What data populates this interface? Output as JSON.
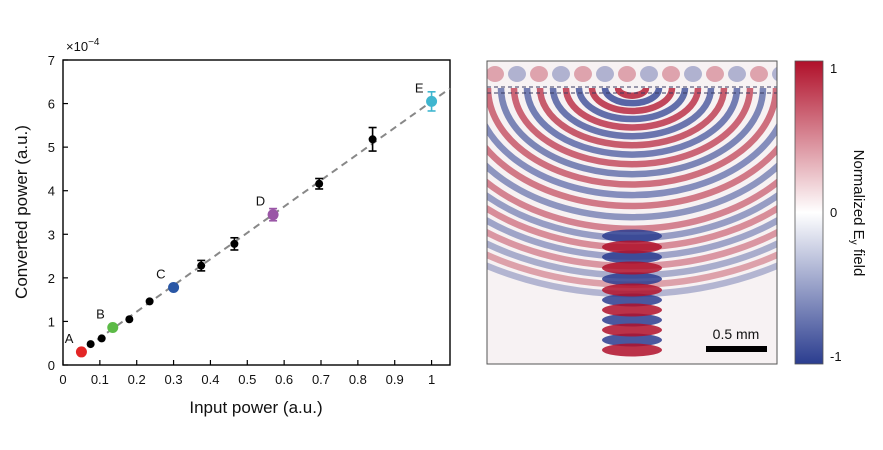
{
  "chart_data": [
    {
      "type": "scatter",
      "xlabel": "Input power (a.u.)",
      "ylabel": "Converted power (a.u.)",
      "y_multiplier": "×10",
      "y_multiplier_exp": "−4",
      "xlim": [
        0,
        1.05
      ],
      "ylim": [
        0,
        7
      ],
      "xticks": [
        0,
        0.1,
        0.2,
        0.3,
        0.4,
        0.5,
        0.6,
        0.7,
        0.8,
        0.9,
        1
      ],
      "xtick_labels": [
        "0",
        "0.1",
        "0.2",
        "0.3",
        "0.4",
        "0.5",
        "0.6",
        "0.7",
        "0.8",
        "0.9",
        "1"
      ],
      "yticks": [
        0,
        1,
        2,
        3,
        4,
        5,
        6,
        7
      ],
      "ytick_labels": [
        "0",
        "1",
        "2",
        "3",
        "4",
        "5",
        "6",
        "7"
      ],
      "fit_line": {
        "style": "dashed",
        "color": "#888888",
        "x": [
          0.04,
          1.05
        ],
        "y": [
          0.26,
          6.35
        ]
      },
      "points": [
        {
          "x": 0.05,
          "y": 0.3,
          "err": 0,
          "color": "#e32626",
          "label": "A"
        },
        {
          "x": 0.075,
          "y": 0.48,
          "err": 0,
          "color": "#000000",
          "label": ""
        },
        {
          "x": 0.105,
          "y": 0.61,
          "err": 0,
          "color": "#000000",
          "label": ""
        },
        {
          "x": 0.135,
          "y": 0.86,
          "err": 0,
          "color": "#5cba47",
          "label": "B"
        },
        {
          "x": 0.18,
          "y": 1.05,
          "err": 0,
          "color": "#000000",
          "label": ""
        },
        {
          "x": 0.235,
          "y": 1.46,
          "err": 0,
          "color": "#000000",
          "label": ""
        },
        {
          "x": 0.3,
          "y": 1.78,
          "err": 0,
          "color": "#2a57a5",
          "label": "C"
        },
        {
          "x": 0.375,
          "y": 2.28,
          "err": 0.12,
          "color": "#000000",
          "label": ""
        },
        {
          "x": 0.465,
          "y": 2.78,
          "err": 0.14,
          "color": "#000000",
          "label": ""
        },
        {
          "x": 0.57,
          "y": 3.45,
          "err": 0.14,
          "color": "#9a56a6",
          "label": "D"
        },
        {
          "x": 0.695,
          "y": 4.16,
          "err": 0.12,
          "color": "#000000",
          "label": ""
        },
        {
          "x": 0.84,
          "y": 5.18,
          "err": 0.27,
          "color": "#000000",
          "label": ""
        },
        {
          "x": 1.0,
          "y": 6.05,
          "err": 0.22,
          "color": "#3fb6cf",
          "label": "E"
        }
      ]
    },
    {
      "type": "heatmap",
      "colorbar_label_prefix": "Normalized E",
      "colorbar_label_sub": "y",
      "colorbar_label_suffix": " field",
      "colorbar_range": [
        -1,
        1
      ],
      "colorbar_ticks": [
        "1",
        "0",
        "-1"
      ],
      "colormap": [
        "#2b3d8f",
        "#ffffff",
        "#b0102a"
      ],
      "scale_bar_label": "0.5 mm"
    }
  ]
}
